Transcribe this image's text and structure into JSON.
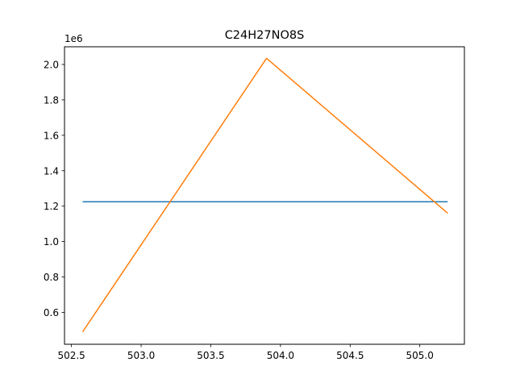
{
  "chart_data": {
    "type": "line",
    "title": "C24H27NO8S",
    "xlabel": "",
    "ylabel": "",
    "y_offset_label": "1e6",
    "xlim": [
      502.45,
      505.32
    ],
    "ylim": [
      420000,
      2100000
    ],
    "x_ticks": [
      502.5,
      503.0,
      503.5,
      504.0,
      504.5,
      505.0
    ],
    "x_tick_labels": [
      "502.5",
      "503.0",
      "503.5",
      "504.0",
      "504.5",
      "505.0"
    ],
    "y_ticks": [
      600000,
      800000,
      1000000,
      1200000,
      1400000,
      1600000,
      1800000,
      2000000
    ],
    "y_tick_labels": [
      "0.6",
      "0.8",
      "1.0",
      "1.2",
      "1.4",
      "1.6",
      "1.8",
      "2.0"
    ],
    "grid": false,
    "series": [
      {
        "color": "#1f77b4",
        "x": [
          502.58,
          505.2
        ],
        "y": [
          1225000,
          1225000
        ]
      },
      {
        "color": "#ff7f0e",
        "x": [
          502.58,
          503.9,
          505.2
        ],
        "y": [
          490000,
          2035000,
          1160000
        ]
      }
    ]
  }
}
